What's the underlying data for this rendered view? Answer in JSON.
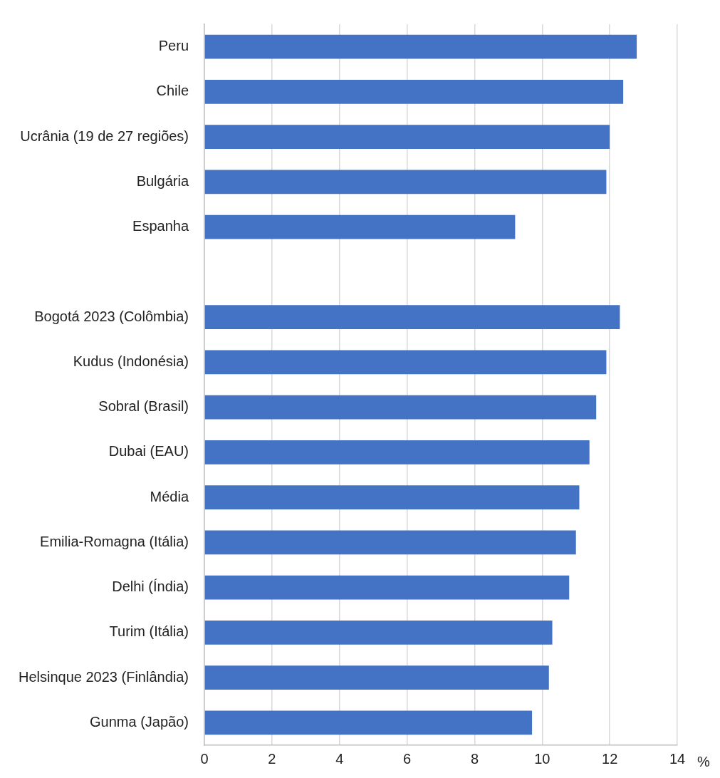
{
  "chart_data": {
    "type": "bar",
    "orientation": "horizontal",
    "xlabel": "%",
    "categories": [
      "Peru",
      "Chile",
      "Ucrânia (19 de 27 regiões)",
      "Bulgária",
      "Espanha",
      null,
      "Bogotá 2023 (Colômbia)",
      "Kudus (Indonésia)",
      "Sobral (Brasil)",
      "Dubai (EAU)",
      "Média",
      "Emilia-Romagna (Itália)",
      "Delhi (Índia)",
      "Turim (Itália)",
      "Helsinque 2023 (Finlândia)",
      "Gunma (Japão)"
    ],
    "values": [
      12.8,
      12.4,
      12.0,
      11.9,
      9.2,
      null,
      12.3,
      11.9,
      11.6,
      11.4,
      11.1,
      11.0,
      10.8,
      10.3,
      10.2,
      9.7
    ],
    "color": "#4472c4",
    "xlim": [
      0,
      14
    ],
    "xticks": [
      0,
      2,
      4,
      6,
      8,
      10,
      12,
      14
    ],
    "grid": "x",
    "legend": false
  }
}
